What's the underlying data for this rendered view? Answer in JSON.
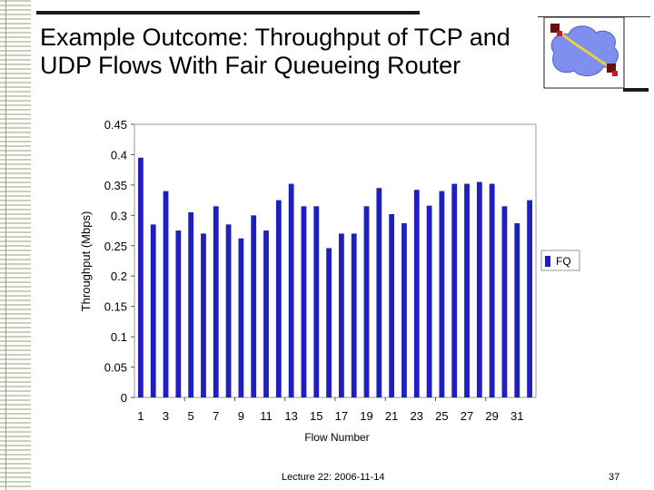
{
  "slide": {
    "title_line1": "Example Outcome: Throughput of TCP and",
    "title_line2": "UDP Flows  With Fair Queueing Router",
    "footer": "Lecture 22: 2006-11-14",
    "page_number": "37"
  },
  "colors": {
    "bar": "#1f1fbf",
    "logo_cloud": "#7f8fef",
    "logo_line": "#e8d040",
    "logo_node": "#6a1010"
  },
  "chart_data": {
    "type": "bar",
    "xlabel": "Flow Number",
    "ylabel": "Throughput (Mbps)",
    "ylim": [
      0,
      0.45
    ],
    "yticks": [
      "0.45",
      "0.4",
      "0.35",
      "0.3",
      "0.25",
      "0.2",
      "0.15",
      "0.1",
      "0.05",
      "0"
    ],
    "ytick_values": [
      0.45,
      0.4,
      0.35,
      0.3,
      0.25,
      0.2,
      0.15,
      0.1,
      0.05,
      0
    ],
    "categories": [
      "1",
      "2",
      "3",
      "4",
      "5",
      "6",
      "7",
      "8",
      "9",
      "10",
      "11",
      "12",
      "13",
      "14",
      "15",
      "16",
      "17",
      "18",
      "19",
      "20",
      "21",
      "22",
      "23",
      "24",
      "25",
      "26",
      "27",
      "28",
      "29",
      "30",
      "31",
      "32"
    ],
    "xtick_labels": [
      "1",
      "3",
      "5",
      "7",
      "9",
      "11",
      "13",
      "15",
      "17",
      "19",
      "21",
      "23",
      "25",
      "27",
      "29",
      "31"
    ],
    "series": [
      {
        "name": "FQ",
        "values": [
          0.395,
          0.285,
          0.34,
          0.275,
          0.305,
          0.27,
          0.315,
          0.285,
          0.262,
          0.3,
          0.275,
          0.325,
          0.352,
          0.315,
          0.315,
          0.246,
          0.27,
          0.27,
          0.315,
          0.345,
          0.302,
          0.287,
          0.342,
          0.316,
          0.34,
          0.352,
          0.352,
          0.355,
          0.352,
          0.315,
          0.287,
          0.325
        ]
      }
    ],
    "legend": "right",
    "grid": false
  }
}
